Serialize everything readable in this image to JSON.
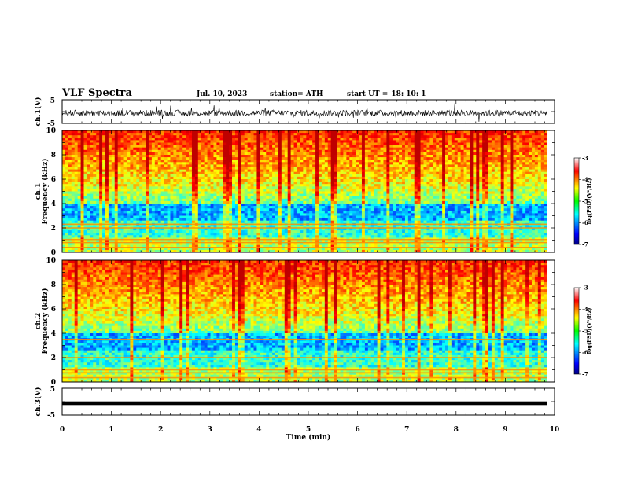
{
  "header": {
    "title": "VLF Spectra",
    "date": "Jul. 10, 2023",
    "station": "station= ATH",
    "start_label": "start UT =",
    "start_time": "18: 10: 1"
  },
  "chart_data": [
    {
      "type": "line",
      "panel": "ch1-waveform",
      "ylabel": "ch.1(V)",
      "ylim": [
        -5,
        5
      ],
      "yticks": [
        5,
        -5
      ],
      "xlim": [
        0,
        10
      ],
      "grid": false,
      "description_amplitude": "noisy waveform approx between -3 and 2 V"
    },
    {
      "type": "heatmap",
      "panel": "ch1-spectrogram",
      "ylabel": "ch.1\nFrequency (kHz)",
      "ylabel_lines": [
        "ch.1",
        "Frequency (kHz)"
      ],
      "ylim": [
        0,
        10
      ],
      "yticks": [
        0,
        2,
        4,
        6,
        8,
        10
      ],
      "xlim": [
        0,
        9.85
      ],
      "colorbar": {
        "label": "log(PSD)(V²/Hz)",
        "range": [
          -7,
          -3
        ],
        "ticks": [
          -3,
          -4,
          -5,
          -6,
          -7
        ]
      }
    },
    {
      "type": "heatmap",
      "panel": "ch2-spectrogram",
      "ylabel": "ch.2\nFrequency (kHz)",
      "ylabel_lines": [
        "ch.2",
        "Frequency (kHz)"
      ],
      "ylim": [
        0,
        10
      ],
      "yticks": [
        0,
        2,
        4,
        6,
        8,
        10
      ],
      "xlim": [
        0,
        9.85
      ],
      "colorbar": {
        "label": "log(PSD)(V²/Hz)",
        "range": [
          -7,
          -3
        ],
        "ticks": [
          -3,
          -4,
          -5,
          -6,
          -7
        ]
      }
    },
    {
      "type": "line",
      "panel": "ch3-waveform",
      "ylabel": "ch.3(V)",
      "ylim": [
        -5,
        5
      ],
      "yticks": [
        5,
        -5
      ],
      "xlim": [
        0,
        10
      ],
      "constant_value": -0.6
    }
  ],
  "xaxis": {
    "label": "Time (min)",
    "ticks": [
      0,
      1,
      2,
      3,
      4,
      5,
      6,
      7,
      8,
      9,
      10
    ]
  },
  "colors": {
    "jet_low": "#000080",
    "jet_high": "#ff0000",
    "frame": "#000000"
  }
}
